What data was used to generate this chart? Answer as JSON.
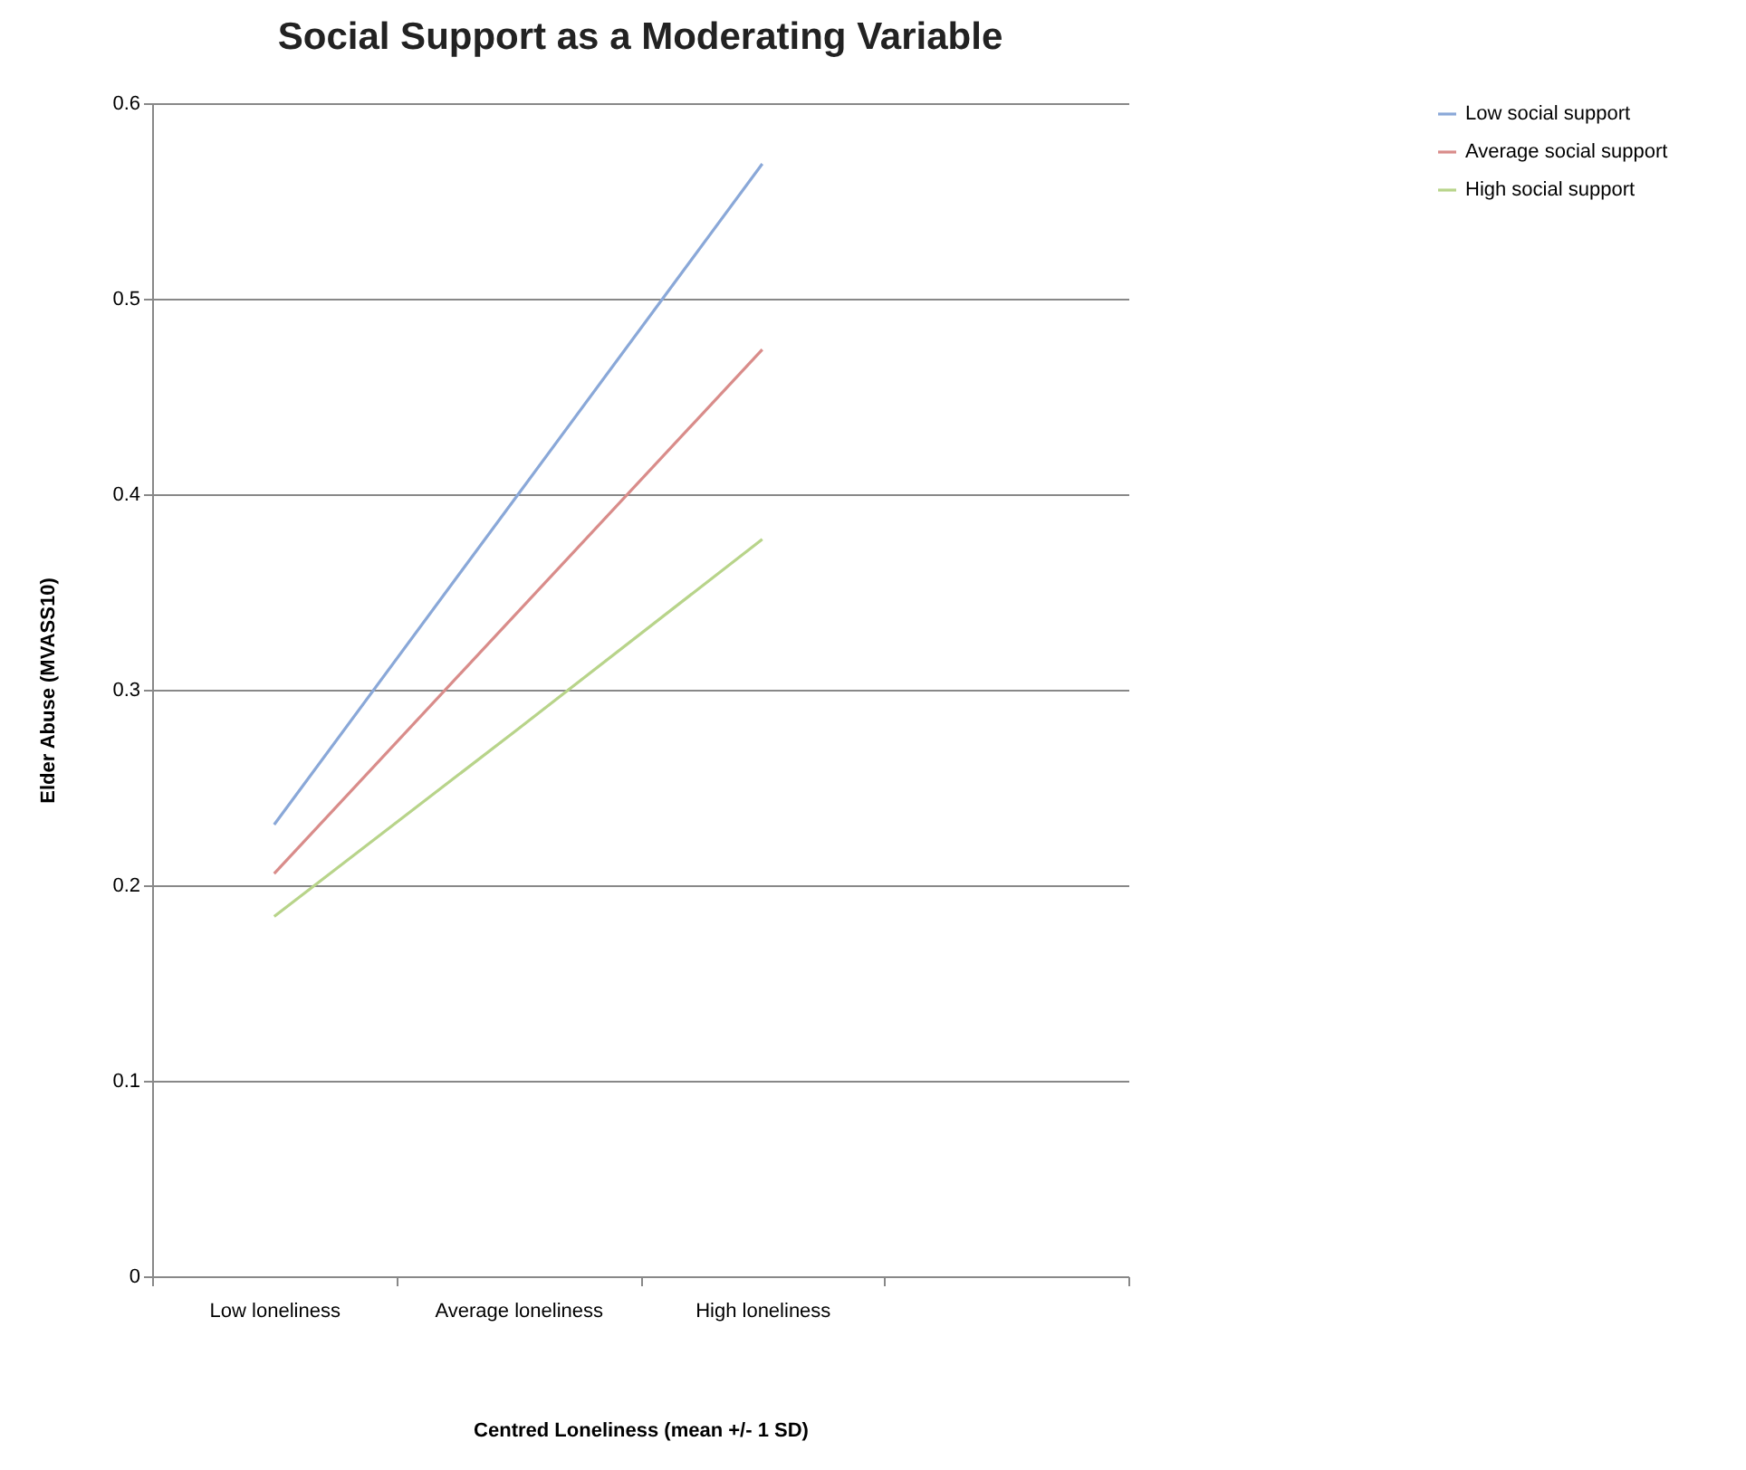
{
  "chart_data": {
    "type": "line",
    "title": "Social Support as a Moderating Variable",
    "xlabel": "Centred Loneliness (mean +/- 1 SD)",
    "ylabel": "Elder Abuse (MVASS10)",
    "categories": [
      "Low loneliness",
      "Average loneliness",
      "High loneliness",
      null
    ],
    "series": [
      {
        "name": "Low social support",
        "color": "#8aa8d8",
        "values": [
          0.231,
          0.4,
          0.569,
          null
        ]
      },
      {
        "name": "Average social support",
        "color": "#d98c8a",
        "values": [
          0.206,
          0.34,
          0.474,
          null
        ]
      },
      {
        "name": "High social support",
        "color": "#b8d48a",
        "values": [
          0.184,
          0.28,
          0.377,
          null
        ]
      }
    ],
    "ylim": [
      0,
      0.6
    ],
    "yticks": [
      0,
      0.1,
      0.2,
      0.3,
      0.4,
      0.5,
      0.6
    ],
    "grid": "y",
    "legend": "top right",
    "marker": "none",
    "line_style": "solid"
  }
}
